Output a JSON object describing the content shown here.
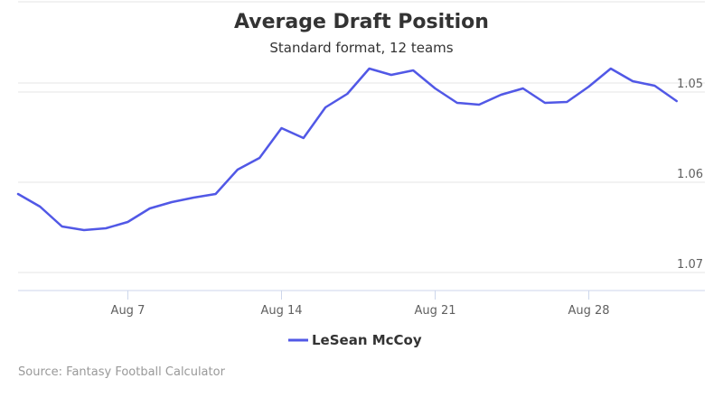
{
  "chart_data": {
    "type": "line",
    "title": "Average Draft Position",
    "subtitle": "Standard format, 12 teams",
    "x_ticks": [
      "Aug 7",
      "Aug 14",
      "Aug 21",
      "Aug 28"
    ],
    "y_ticks": [
      "1.05",
      "1.06",
      "1.07"
    ],
    "ylim": [
      1.049,
      1.072
    ],
    "y_reversed": true,
    "grid": true,
    "legend_position": "bottom",
    "series": [
      {
        "name": "LeSean McCoy",
        "color": "#5158e6",
        "x": [
          "Aug 2",
          "Aug 3",
          "Aug 4",
          "Aug 5",
          "Aug 6",
          "Aug 7",
          "Aug 8",
          "Aug 9",
          "Aug 10",
          "Aug 11",
          "Aug 12",
          "Aug 13",
          "Aug 14",
          "Aug 15",
          "Aug 16",
          "Aug 17",
          "Aug 18",
          "Aug 19",
          "Aug 20",
          "Aug 21",
          "Aug 22",
          "Aug 23",
          "Aug 24",
          "Aug 25",
          "Aug 26",
          "Aug 27",
          "Aug 28",
          "Aug 29",
          "Aug 30",
          "Aug 31",
          "Sep 1"
        ],
        "values": [
          1.0613,
          1.0627,
          1.0649,
          1.0653,
          1.0651,
          1.0644,
          1.0629,
          1.0622,
          1.0617,
          1.0613,
          1.0586,
          1.0573,
          1.054,
          1.0551,
          1.0517,
          1.0502,
          1.0474,
          1.0481,
          1.0476,
          1.0496,
          1.0512,
          1.0514,
          1.0503,
          1.0496,
          1.0512,
          1.0511,
          1.0494,
          1.0474,
          1.0488,
          1.0493,
          1.051
        ]
      }
    ],
    "credits": "Source: Fantasy Football Calculator"
  }
}
